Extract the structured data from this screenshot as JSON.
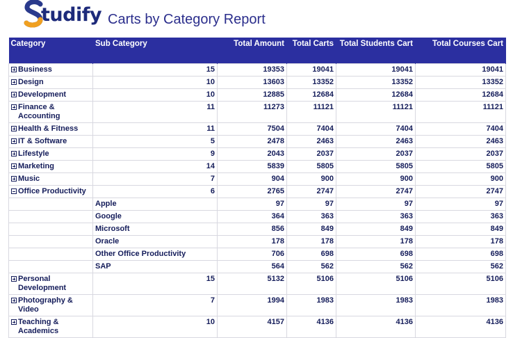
{
  "brand": {
    "logo_text": "tudify",
    "logo_letter": "S",
    "colors": {
      "navy": "#1d2a7a",
      "accent_orange": "#f0a020"
    }
  },
  "report": {
    "title": "Carts by Category Report"
  },
  "columns": [
    "Category",
    "Sub Category",
    "Total Amount",
    "Total Carts",
    "Total Students Cart",
    "Total Courses Cart"
  ],
  "header_color": "#2b2fa0",
  "rows": [
    {
      "expander": "plus",
      "category": "Business",
      "sub": "15",
      "amount": "19353",
      "carts": "19041",
      "students": "19041",
      "courses": "19041",
      "lines": 1
    },
    {
      "expander": "plus",
      "category": "Design",
      "sub": "10",
      "amount": "13603",
      "carts": "13352",
      "students": "13352",
      "courses": "13352",
      "lines": 1
    },
    {
      "expander": "plus",
      "category": "Development",
      "sub": "10",
      "amount": "12885",
      "carts": "12684",
      "students": "12684",
      "courses": "12684",
      "lines": 1
    },
    {
      "expander": "plus",
      "category": "Finance & Accounting",
      "sub": "11",
      "amount": "11273",
      "carts": "11121",
      "students": "11121",
      "courses": "11121",
      "lines": 2
    },
    {
      "expander": "plus",
      "category": "Health & Fitness",
      "sub": "11",
      "amount": "7504",
      "carts": "7404",
      "students": "7404",
      "courses": "7404",
      "lines": 1
    },
    {
      "expander": "plus",
      "category": "IT & Software",
      "sub": "5",
      "amount": "2478",
      "carts": "2463",
      "students": "2463",
      "courses": "2463",
      "lines": 1
    },
    {
      "expander": "plus",
      "category": "Lifestyle",
      "sub": "9",
      "amount": "2043",
      "carts": "2037",
      "students": "2037",
      "courses": "2037",
      "lines": 1
    },
    {
      "expander": "plus",
      "category": "Marketing",
      "sub": "14",
      "amount": "5839",
      "carts": "5805",
      "students": "5805",
      "courses": "5805",
      "lines": 1
    },
    {
      "expander": "plus",
      "category": "Music",
      "sub": "7",
      "amount": "904",
      "carts": "900",
      "students": "900",
      "courses": "900",
      "lines": 1
    },
    {
      "expander": "minus",
      "category": "Office Productivity",
      "sub": "6",
      "amount": "2765",
      "carts": "2747",
      "students": "2747",
      "courses": "2747",
      "lines": 1
    },
    {
      "expander": "",
      "category": "",
      "sub": "Apple",
      "amount": "97",
      "carts": "97",
      "students": "97",
      "courses": "97",
      "lines": 1,
      "child": true
    },
    {
      "expander": "",
      "category": "",
      "sub": "Google",
      "amount": "364",
      "carts": "363",
      "students": "363",
      "courses": "363",
      "lines": 1,
      "child": true
    },
    {
      "expander": "",
      "category": "",
      "sub": "Microsoft",
      "amount": "856",
      "carts": "849",
      "students": "849",
      "courses": "849",
      "lines": 1,
      "child": true
    },
    {
      "expander": "",
      "category": "",
      "sub": "Oracle",
      "amount": "178",
      "carts": "178",
      "students": "178",
      "courses": "178",
      "lines": 1,
      "child": true
    },
    {
      "expander": "",
      "category": "",
      "sub": "Other Office Productivity",
      "amount": "706",
      "carts": "698",
      "students": "698",
      "courses": "698",
      "lines": 1,
      "child": true
    },
    {
      "expander": "",
      "category": "",
      "sub": "SAP",
      "amount": "564",
      "carts": "562",
      "students": "562",
      "courses": "562",
      "lines": 1,
      "child": true
    },
    {
      "expander": "plus",
      "category": "Personal Development",
      "sub": "15",
      "amount": "5132",
      "carts": "5106",
      "students": "5106",
      "courses": "5106",
      "lines": 2
    },
    {
      "expander": "plus",
      "category": "Photography & Video",
      "sub": "7",
      "amount": "1994",
      "carts": "1983",
      "students": "1983",
      "courses": "1983",
      "lines": 2
    },
    {
      "expander": "plus",
      "category": "Teaching & Academics",
      "sub": "10",
      "amount": "4157",
      "carts": "4136",
      "students": "4136",
      "courses": "4136",
      "lines": 2
    }
  ]
}
